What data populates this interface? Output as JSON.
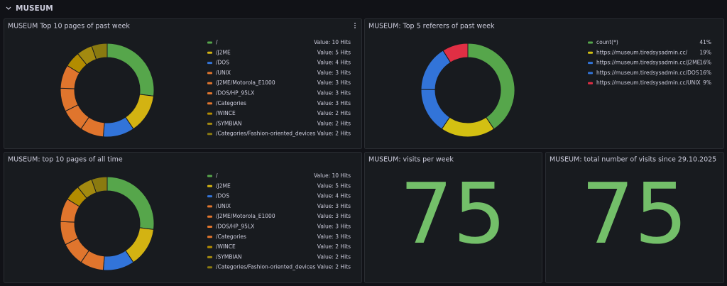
{
  "section": "MUSEUM",
  "panels": [
    {
      "type": "donut",
      "title": "MUSEUM Top 10 pages of past week",
      "categories": [
        "/",
        "/J2ME",
        "/DOS",
        "/UNIX",
        "/J2ME/Motorola_E1000",
        "/DOS/HP_95LX",
        "/Categories",
        "/WINCE",
        "/SYMBIAN",
        "/Categories/Fashion-oriented_devices"
      ],
      "values": [
        10,
        5,
        4,
        3,
        3,
        3,
        3,
        2,
        2,
        2
      ],
      "value_labels": [
        "Value: 10 Hits",
        "Value: 5 Hits",
        "Value: 4 Hits",
        "Value: 3 Hits",
        "Value: 3 Hits",
        "Value: 3 Hits",
        "Value: 3 Hits",
        "Value: 2 Hits",
        "Value: 2 Hits",
        "Value: 2 Hits"
      ],
      "colors": [
        "#56a64b",
        "#d3b312",
        "#3274d9",
        "#e0752d",
        "#e0752d",
        "#e0752d",
        "#e0752d",
        "#b38c00",
        "#a38a10",
        "#8a7a10"
      ]
    },
    {
      "type": "donut",
      "title": "MUSEUM: Top 5 referers of past week",
      "categories": [
        "count(*)",
        "https://museum.tiredsysadmin.cc/",
        "https://museum.tiredsysadmin.cc/J2ME",
        "https://museum.tiredsysadmin.cc/DOS",
        "https://museum.tiredsysadmin.cc/UNIX"
      ],
      "values": [
        41,
        19,
        16,
        16,
        9
      ],
      "value_labels": [
        "41%",
        "19%",
        "16%",
        "16%",
        "9%"
      ],
      "colors": [
        "#56a64b",
        "#d3c012",
        "#3274d9",
        "#3274d9",
        "#e02f44"
      ]
    },
    {
      "type": "donut",
      "title": "MUSEUM: top 10 pages of all time",
      "categories": [
        "/",
        "/J2ME",
        "/DOS",
        "/UNIX",
        "/J2ME/Motorola_E1000",
        "/DOS/HP_95LX",
        "/Categories",
        "/WINCE",
        "/SYMBIAN",
        "/Categories/Fashion-oriented_devices"
      ],
      "values": [
        10,
        5,
        4,
        3,
        3,
        3,
        3,
        2,
        2,
        2
      ],
      "value_labels": [
        "Value: 10 Hits",
        "Value: 5 Hits",
        "Value: 4 Hits",
        "Value: 3 Hits",
        "Value: 3 Hits",
        "Value: 3 Hits",
        "Value: 3 Hits",
        "Value: 2 Hits",
        "Value: 2 Hits",
        "Value: 2 Hits"
      ],
      "colors": [
        "#56a64b",
        "#d3b312",
        "#3274d9",
        "#e0752d",
        "#e0752d",
        "#e0752d",
        "#e0752d",
        "#b38c00",
        "#a38a10",
        "#8a7a10"
      ]
    },
    {
      "type": "stat",
      "title": "MUSEUM: visits per week",
      "value": 75,
      "color": "#73bf69"
    },
    {
      "type": "stat",
      "title": "MUSEUM: total number of visits since 29.10.2025",
      "value": 75,
      "color": "#73bf69"
    }
  ]
}
